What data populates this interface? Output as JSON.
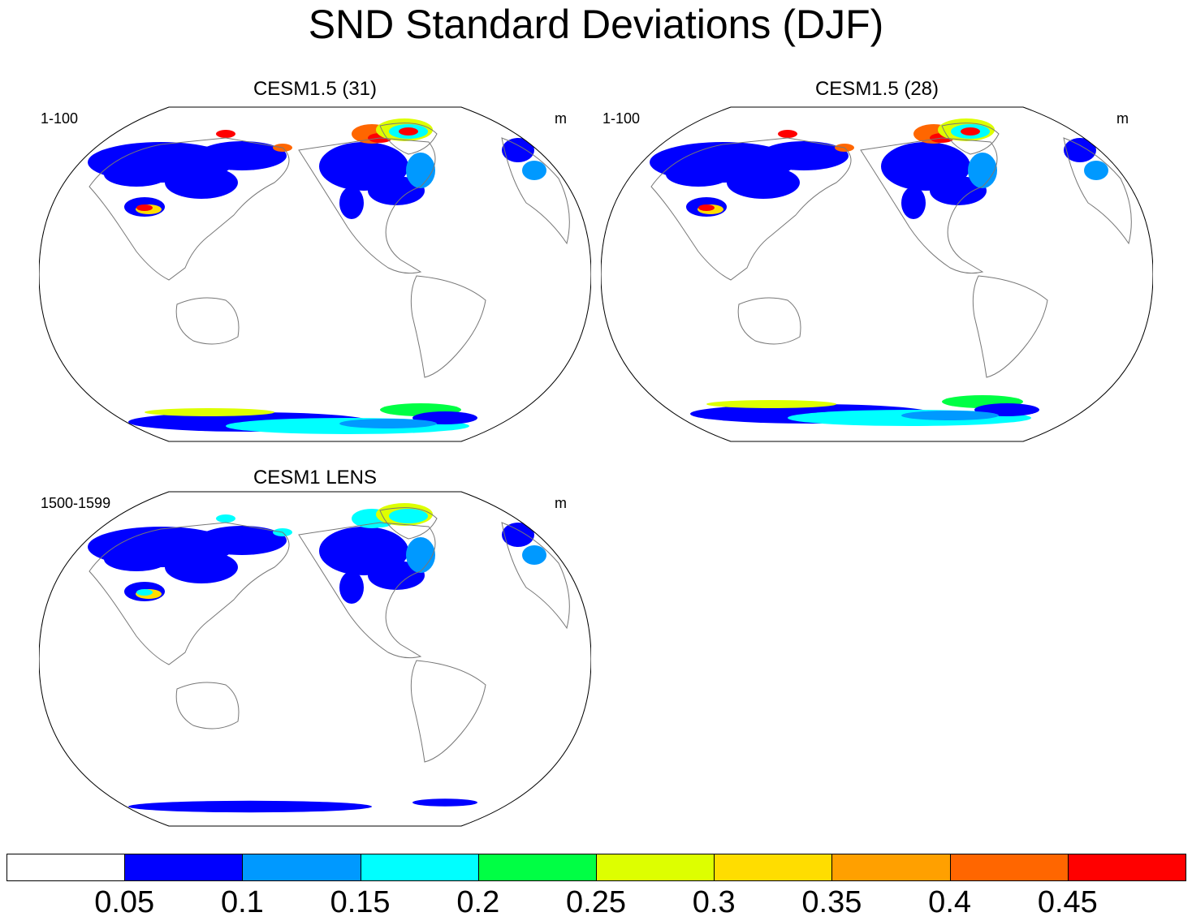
{
  "title": "SND Standard Deviations (DJF)",
  "panels": [
    {
      "title": "CESM1.5 (31)",
      "left_label": "1-100",
      "right_label": "m"
    },
    {
      "title": "CESM1.5 (28)",
      "left_label": "1-100",
      "right_label": "m"
    },
    {
      "title": "CESM1 LENS",
      "left_label": "1500-1599",
      "right_label": "m"
    }
  ],
  "colorbar": {
    "colors": [
      "#ffffff",
      "#0000ff",
      "#0099ff",
      "#00ffff",
      "#00ff44",
      "#ddff00",
      "#ffdd00",
      "#ffa000",
      "#ff6600",
      "#ff0000"
    ],
    "labels": [
      "0.05",
      "0.1",
      "0.15",
      "0.2",
      "0.25",
      "0.3",
      "0.35",
      "0.4",
      "0.45"
    ]
  }
}
